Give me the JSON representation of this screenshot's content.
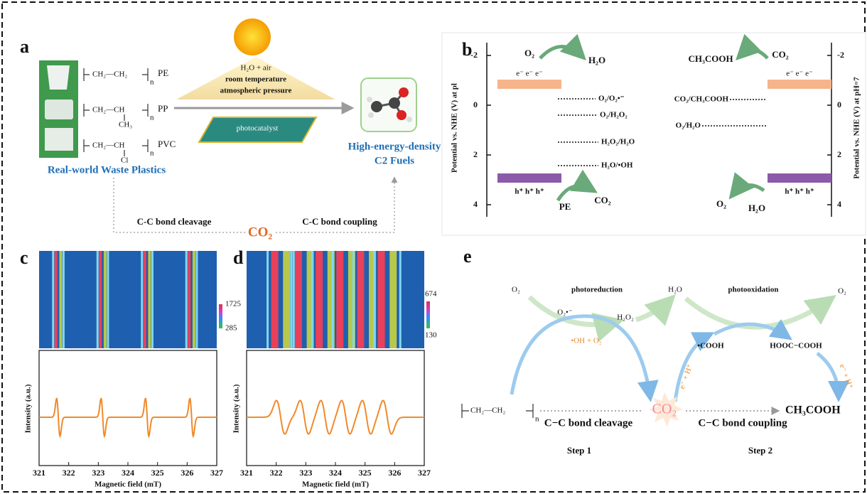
{
  "panel_a": {
    "label": "a",
    "polymers": [
      {
        "unit": "CH₂—CH₂",
        "repeat": "n",
        "name": "PE"
      },
      {
        "unit": "CH₂—CH",
        "substituent": "CH₃",
        "repeat": "n",
        "name": "PP"
      },
      {
        "unit": "CH₂—CH",
        "substituent": "Cl",
        "repeat": "n",
        "name": "PVC"
      }
    ],
    "source_label": "Real-world Waste Plastics",
    "conditions": [
      "H₂O + air",
      "room temperature",
      "atmospheric pressure"
    ],
    "catalyst": "photocatalyst",
    "product": [
      "High-energy-density",
      "C2 Fuels"
    ],
    "cleavage": "C-C bond cleavage",
    "intermediate": "CO₂",
    "coupling": "C-C bond coupling"
  },
  "panel_b": {
    "label": "b",
    "left_axis_label": "Potential vs. NHE (V) at pl",
    "right_axis_label": "Potential vs. NHE (V) at pH=7",
    "ticks": [
      -2,
      0,
      2,
      4
    ],
    "left": {
      "electrons": "e⁻  e⁻  e⁻",
      "holes": "h⁺  h⁺  h⁺",
      "reduction": [
        "O₂",
        "H₂O"
      ],
      "oxidation": [
        "PE",
        "CO₂"
      ],
      "levels": [
        "O₂/O₂•⁻",
        "O₂/H₂O₂",
        "H₂O₂/H₂O",
        "H₂O/•OH"
      ]
    },
    "right": {
      "electrons": "e⁻  e⁻  e⁻",
      "holes": "h⁺  h⁺  h⁺",
      "reduction": [
        "CH₃COOH",
        "CO₂"
      ],
      "oxidation": [
        "O₂",
        "H₂O"
      ],
      "levels": [
        "CO₂/CH₃COOH",
        "O₂/H₂O"
      ]
    }
  },
  "panel_c": {
    "label": "c",
    "colorbar": [
      1725,
      285
    ],
    "y_label": "Intensity (a.u.)",
    "x_label": "Magnetic field (mT)",
    "xticks": [
      321,
      322,
      323,
      324,
      325,
      326,
      327
    ]
  },
  "panel_d": {
    "label": "d",
    "colorbar": [
      674,
      130
    ],
    "y_label": "Intensity (a.u.)",
    "x_label": "Magnetic field (mT)",
    "xticks": [
      321,
      322,
      323,
      324,
      325,
      326,
      327
    ]
  },
  "panel_e": {
    "label": "e",
    "o2_in": "O₂",
    "photoreduction": "photoreduction",
    "h2o": "H₂O",
    "photooxidation": "photooxidation",
    "o2_out": "O₂",
    "superoxide": "O₂•⁻",
    "h2o2": "H₂O₂",
    "radicals": "•OH + O₂",
    "cooh": "•COOH",
    "oxalic": "HOOC−COOH",
    "pcet1": "e⁻ + H⁺",
    "pcet2": "e⁻ + H⁺",
    "monomer": "CH₂—CH₂",
    "repeat": "n",
    "co2": "CO₂",
    "product": "CH₃COOH",
    "cleavage": "C−C bond cleavage",
    "coupling": "C−C bond coupling",
    "step1": "Step 1",
    "step2": "Step 2"
  }
}
